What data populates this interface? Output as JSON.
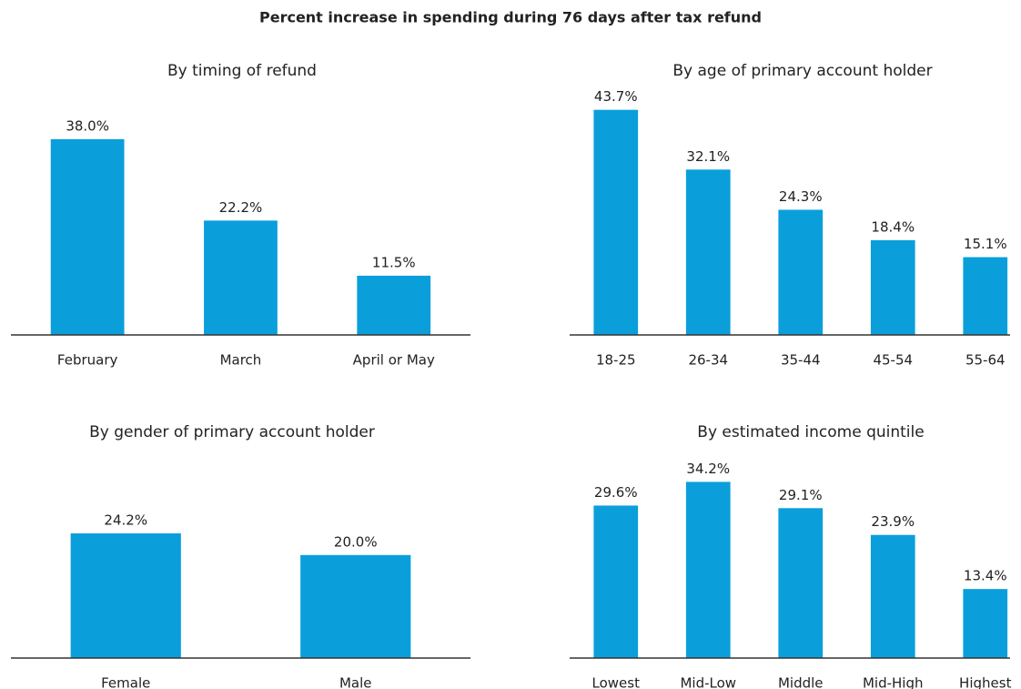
{
  "title": "Percent increase in spending during 76 days after tax refund",
  "chart_data": [
    {
      "type": "bar",
      "title": "By timing of refund",
      "categories": [
        "February",
        "March",
        "April or May"
      ],
      "values": [
        38.0,
        22.2,
        11.5
      ],
      "value_labels": [
        "38.0%",
        "22.2%",
        "11.5%"
      ],
      "color": "#0a9fdb",
      "ylim": [
        0,
        50
      ]
    },
    {
      "type": "bar",
      "title": "By age of primary account holder",
      "categories": [
        "18-25",
        "26-34",
        "35-44",
        "45-54",
        "55-64"
      ],
      "values": [
        43.7,
        32.1,
        24.3,
        18.4,
        15.1
      ],
      "value_labels": [
        "43.7%",
        "32.1%",
        "24.3%",
        "18.4%",
        "15.1%"
      ],
      "color": "#0a9fdb",
      "ylim": [
        0,
        50
      ]
    },
    {
      "type": "bar",
      "title": "By gender of primary account holder",
      "categories": [
        "Female",
        "Male"
      ],
      "values": [
        24.2,
        20.0
      ],
      "value_labels": [
        "24.2%",
        "20.0%"
      ],
      "color": "#0a9fdb",
      "ylim": [
        0,
        50
      ]
    },
    {
      "type": "bar",
      "title": "By estimated income quintile",
      "categories": [
        "Lowest",
        "Mid-Low",
        "Middle",
        "Mid-High",
        "Highest"
      ],
      "values": [
        29.6,
        34.2,
        29.1,
        23.9,
        13.4
      ],
      "value_labels": [
        "29.6%",
        "34.2%",
        "29.1%",
        "23.9%",
        "13.4%"
      ],
      "color": "#0a9fdb",
      "ylim": [
        0,
        50
      ]
    }
  ]
}
